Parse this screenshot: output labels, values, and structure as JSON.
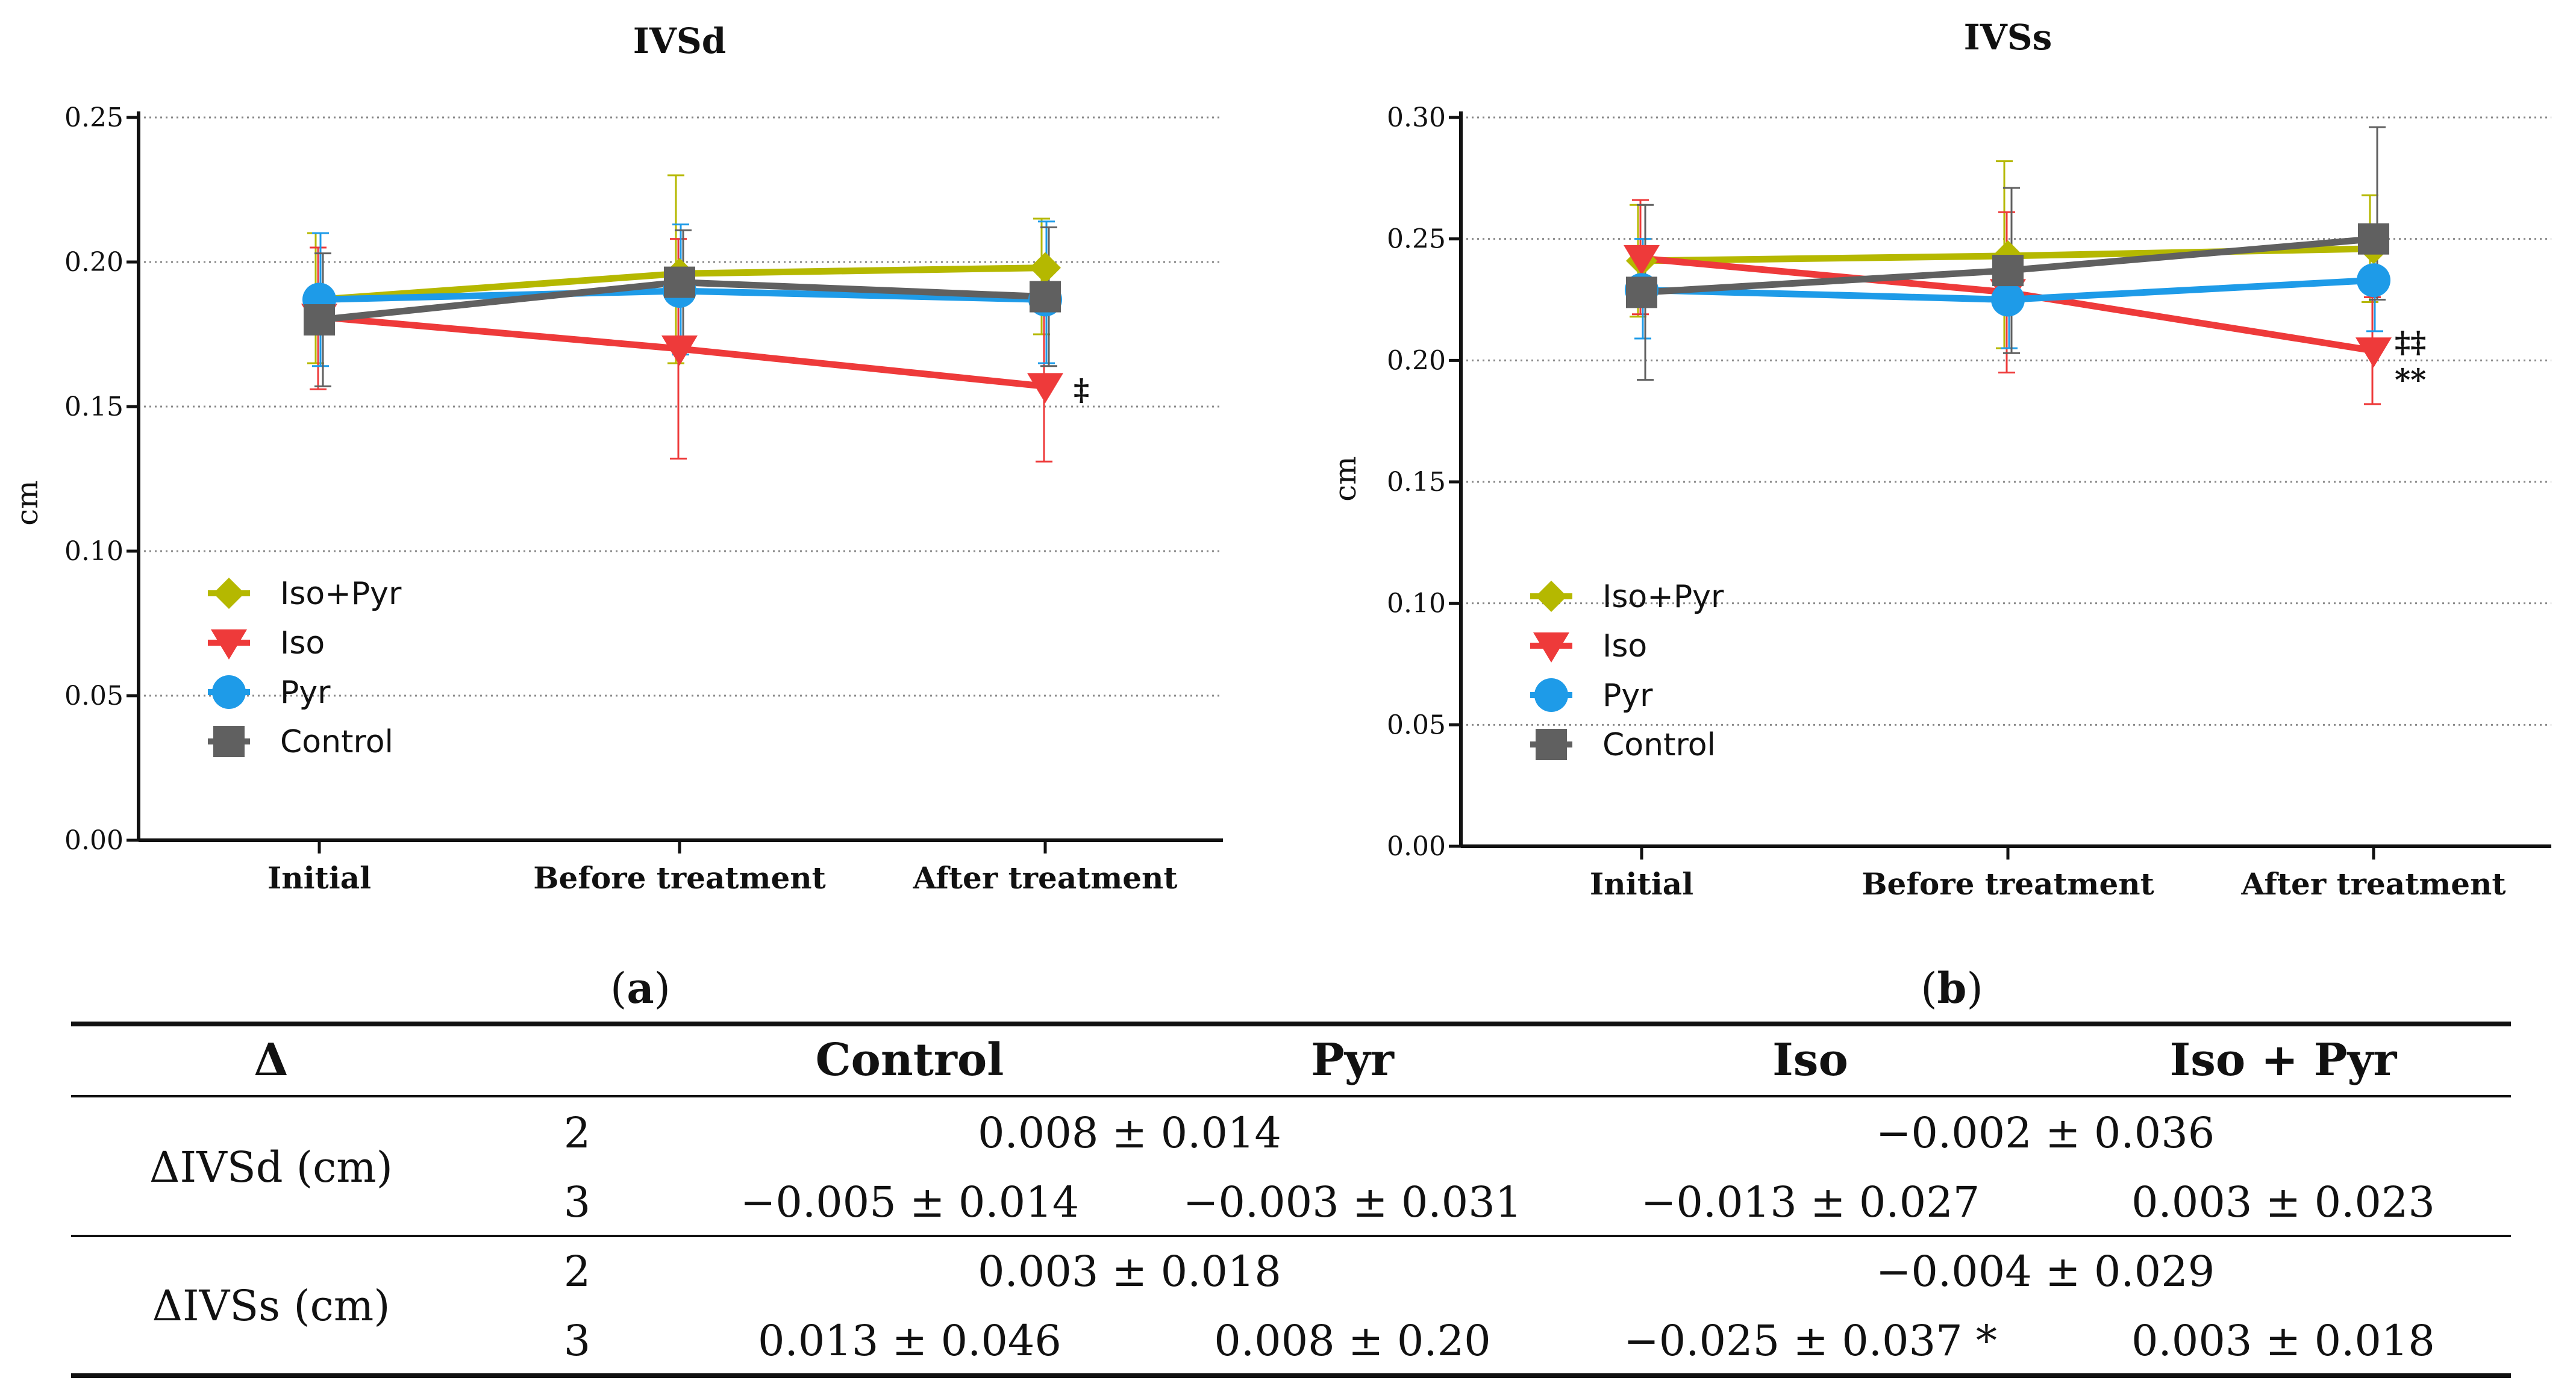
{
  "chart_data": [
    {
      "type": "line",
      "title": "IVSd",
      "ylabel": "cm",
      "xlabel": "",
      "categories": [
        "Initial",
        "Before treatment",
        "After treatment"
      ],
      "ylim": [
        0,
        0.25
      ],
      "yticks": [
        "0.00",
        "0.05",
        "0.10",
        "0.15",
        "0.20",
        "0.25"
      ],
      "grid": "horizontal dotted",
      "legend_position": "lower-left",
      "panel_label": "a",
      "series": [
        {
          "name": "Iso+Pyr",
          "color": "#b5b800",
          "marker": "diamond",
          "values": [
            0.187,
            0.196,
            0.198
          ],
          "err_low": [
            0.165,
            0.165,
            0.175
          ],
          "err_high": [
            0.21,
            0.23,
            0.215
          ]
        },
        {
          "name": "Iso",
          "color": "#ee3a3a",
          "marker": "triangle-down",
          "values": [
            0.181,
            0.17,
            0.157
          ],
          "err_low": [
            0.156,
            0.132,
            0.131
          ],
          "err_high": [
            0.205,
            0.208,
            0.183
          ]
        },
        {
          "name": "Pyr",
          "color": "#1e9be8",
          "marker": "circle",
          "values": [
            0.187,
            0.19,
            0.187
          ],
          "err_low": [
            0.164,
            0.168,
            0.165
          ],
          "err_high": [
            0.21,
            0.213,
            0.214
          ]
        },
        {
          "name": "Control",
          "color": "#606060",
          "marker": "square",
          "values": [
            0.18,
            0.193,
            0.188
          ],
          "err_low": [
            0.157,
            0.173,
            0.164
          ],
          "err_high": [
            0.203,
            0.211,
            0.212
          ]
        }
      ],
      "annotations": [
        {
          "category": "After treatment",
          "series": "Iso",
          "text": "‡"
        }
      ]
    },
    {
      "type": "line",
      "title": "IVSs",
      "ylabel": "cm",
      "xlabel": "",
      "categories": [
        "Initial",
        "Before treatment",
        "After treatment"
      ],
      "ylim": [
        0,
        0.3
      ],
      "yticks": [
        "0.00",
        "0.05",
        "0.10",
        "0.15",
        "0.20",
        "0.25",
        "0.30"
      ],
      "grid": "horizontal dotted",
      "legend_position": "lower-left",
      "panel_label": "b",
      "series": [
        {
          "name": "Iso+Pyr",
          "color": "#b5b800",
          "marker": "diamond",
          "values": [
            0.241,
            0.243,
            0.246
          ],
          "err_low": [
            0.218,
            0.205,
            0.224
          ],
          "err_high": [
            0.264,
            0.282,
            0.268
          ]
        },
        {
          "name": "Iso",
          "color": "#ee3a3a",
          "marker": "triangle-down",
          "values": [
            0.242,
            0.228,
            0.204
          ],
          "err_low": [
            0.219,
            0.195,
            0.182
          ],
          "err_high": [
            0.266,
            0.261,
            0.226
          ]
        },
        {
          "name": "Pyr",
          "color": "#1e9be8",
          "marker": "circle",
          "values": [
            0.229,
            0.225,
            0.233
          ],
          "err_low": [
            0.209,
            0.205,
            0.212
          ],
          "err_high": [
            0.25,
            0.245,
            0.254
          ]
        },
        {
          "name": "Control",
          "color": "#606060",
          "marker": "square",
          "values": [
            0.228,
            0.237,
            0.25
          ],
          "err_low": [
            0.192,
            0.203,
            0.225
          ],
          "err_high": [
            0.264,
            0.271,
            0.296
          ]
        }
      ],
      "annotations": [
        {
          "category": "After treatment",
          "series": "Iso",
          "text": "‡‡"
        },
        {
          "category": "After treatment",
          "series": "Iso",
          "text": "**"
        }
      ]
    }
  ],
  "table": {
    "headers": [
      "Δ",
      "Control",
      "Pyr",
      "Iso",
      "Iso + Pyr"
    ],
    "groups": [
      {
        "label": "ΔIVSd (cm)",
        "rows": [
          {
            "index": "2",
            "cells": [
              "0.008 ± 0.014",
              "−0.002 ± 0.036"
            ]
          },
          {
            "index": "3",
            "cells": [
              "−0.005 ± 0.014",
              "−0.003 ± 0.031",
              "−0.013 ± 0.027",
              "0.003 ± 0.023"
            ]
          }
        ]
      },
      {
        "label": "ΔIVSs (cm)",
        "rows": [
          {
            "index": "2",
            "cells": [
              "0.003 ± 0.018",
              "−0.004 ± 0.029"
            ]
          },
          {
            "index": "3",
            "cells": [
              "0.013 ± 0.046",
              "0.008 ± 0.20",
              "−0.025 ± 0.037 *",
              "0.003 ± 0.018"
            ]
          }
        ]
      }
    ]
  }
}
